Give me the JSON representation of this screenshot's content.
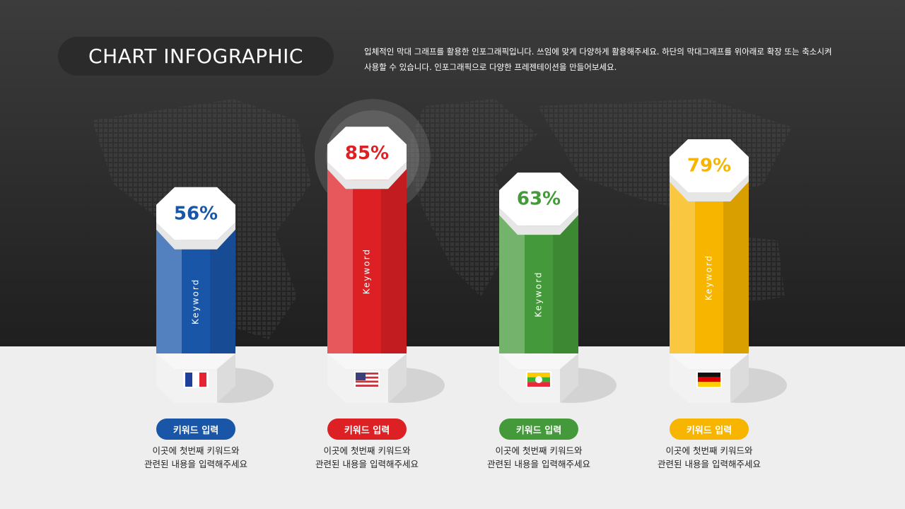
{
  "chart_data": {
    "type": "bar",
    "title": "CHART INFOGRAPHIC",
    "subtitle": "입체적인 막대 그래프를 활용한 인포그래픽입니다. 쓰임에 맞게 다양하게 활용해주세요. 하단의 막대그래프를 위아래로 확장 또는 축소시켜\n사용할 수 있습니다. 인포그래픽으로 다양한 프레젠테이션을 만들어보세요.",
    "categories": [
      "키워드 입력",
      "키워드 입력",
      "키워드 입력",
      "키워드 입력"
    ],
    "values": [
      56,
      85,
      63,
      79
    ],
    "value_labels": [
      "56%",
      "85%",
      "63%",
      "79%"
    ],
    "colors": [
      "#1a56a8",
      "#dd2024",
      "#449a3a",
      "#f7b500"
    ],
    "bar_labels": [
      "Keyword",
      "Keyword",
      "Keyword",
      "Keyword"
    ],
    "descriptions": [
      "이곳에 첫번째 키워드와\n관련된 내용을 입력해주세요",
      "이곳에 첫번째 키워드와\n관련된 내용을 입력해주세요",
      "이곳에 첫번째 키워드와\n관련된 내용을 입력해주세요",
      "이곳에 첫번째 키워드와\n관련된 내용을 입력해주세요"
    ]
  }
}
